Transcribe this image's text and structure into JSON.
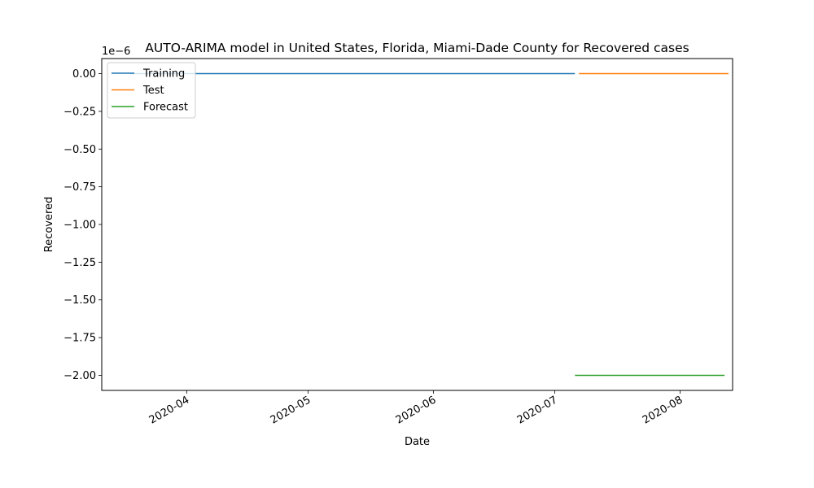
{
  "chart_data": {
    "type": "line",
    "title": "AUTO-ARIMA model in United States, Florida, Miami-Dade County for Recovered cases",
    "xlabel": "Date",
    "ylabel": "Recovered",
    "y_offset_label": "1e−6",
    "y_scale": 1e-06,
    "xlim": [
      "2020-03-11",
      "2020-08-14"
    ],
    "ylim": [
      -2.1,
      0.1
    ],
    "x_ticks": [
      "2020-04-01",
      "2020-05-01",
      "2020-06-01",
      "2020-07-01",
      "2020-08-01"
    ],
    "x_tick_labels": [
      "2020-04",
      "2020-05",
      "2020-06",
      "2020-07",
      "2020-08"
    ],
    "y_ticks": [
      0.0,
      -0.25,
      -0.5,
      -0.75,
      -1.0,
      -1.25,
      -1.5,
      -1.75,
      -2.0
    ],
    "y_tick_labels": [
      "0.00",
      "−0.25",
      "−0.50",
      "−0.75",
      "−1.00",
      "−1.25",
      "−1.50",
      "−1.75",
      "−2.00"
    ],
    "grid": false,
    "legend_position": "top-left",
    "series": [
      {
        "name": "Training",
        "color": "#1f77b4",
        "x": [
          "2020-03-18",
          "2020-07-06"
        ],
        "y": [
          0,
          0
        ]
      },
      {
        "name": "Test",
        "color": "#ff7f0e",
        "x": [
          "2020-07-07",
          "2020-08-13"
        ],
        "y": [
          0,
          0
        ]
      },
      {
        "name": "Forecast",
        "color": "#2ca02c",
        "x": [
          "2020-07-06",
          "2020-08-12"
        ],
        "y": [
          -2.0,
          -2.0
        ]
      }
    ]
  }
}
